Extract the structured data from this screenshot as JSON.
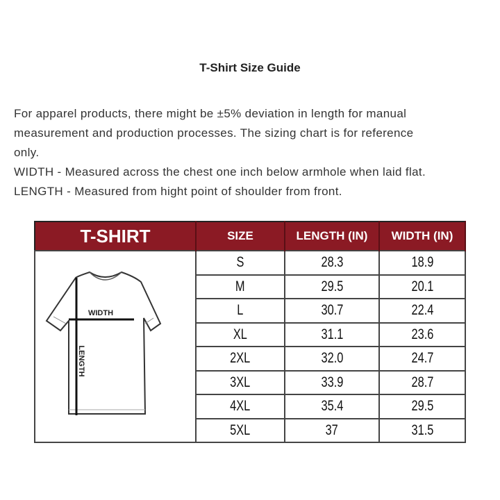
{
  "title": "T-Shirt Size Guide",
  "description_lines": [
    "For apparel products, there might be ±5% deviation in length for manual",
    "measurement and production processes. The sizing chart is for reference",
    "only.",
    "WIDTH - Measured across the chest one inch below armhole when laid flat.",
    "LENGTH - Measured from hight point of shoulder from front."
  ],
  "table": {
    "header_color": "#8b1a24",
    "headers": [
      "T-SHIRT",
      "SIZE",
      "LENGTH (IN)",
      "WIDTH (IN)"
    ],
    "diagram_labels": {
      "width": "WIDTH",
      "length": "LENGTH"
    },
    "rows": [
      {
        "size": "S",
        "length": "28.3",
        "width": "18.9"
      },
      {
        "size": "M",
        "length": "29.5",
        "width": "20.1"
      },
      {
        "size": "L",
        "length": "30.7",
        "width": "22.4"
      },
      {
        "size": "XL",
        "length": "31.1",
        "width": "23.6"
      },
      {
        "size": "2XL",
        "length": "32.0",
        "width": "24.7"
      },
      {
        "size": "3XL",
        "length": "33.9",
        "width": "28.7"
      },
      {
        "size": "4XL",
        "length": "35.4",
        "width": "29.5"
      },
      {
        "size": "5XL",
        "length": "37",
        "width": "31.5"
      }
    ]
  }
}
